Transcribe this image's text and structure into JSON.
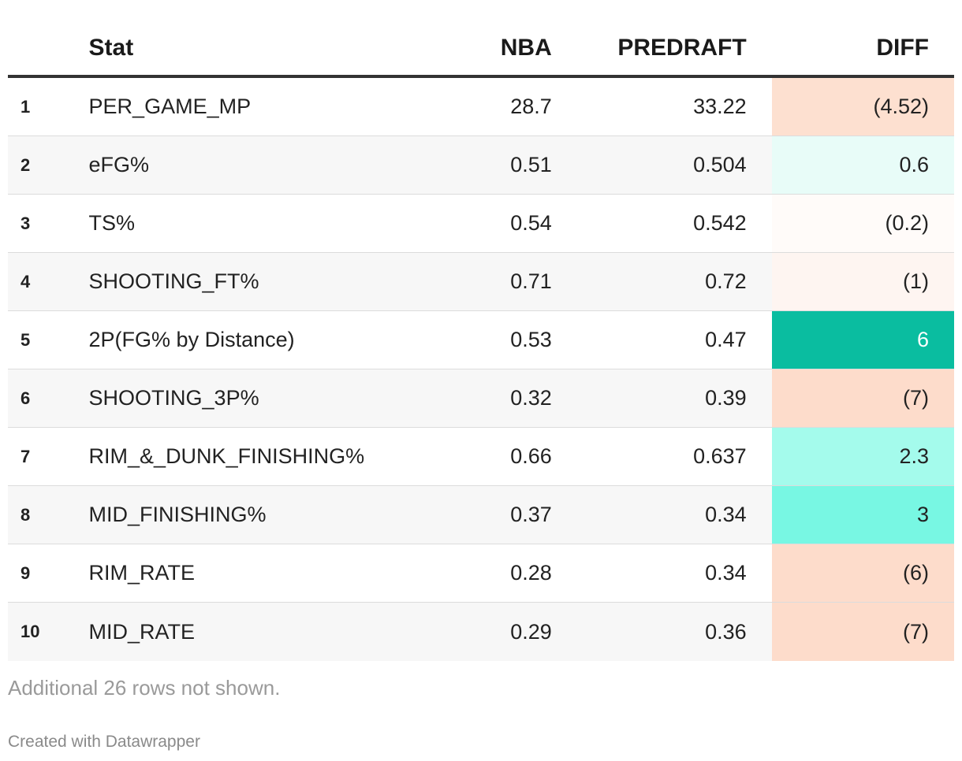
{
  "chart_data": {
    "type": "table",
    "columns": [
      "",
      "Stat",
      "NBA",
      "PREDRAFT",
      "DIFF"
    ],
    "rows": [
      {
        "idx": "1",
        "stat": "PER_GAME_MP",
        "nba": "28.7",
        "predraft": "33.22",
        "diff": "(4.52)",
        "diff_value": -4.52,
        "diff_bg": "#fde0d0",
        "diff_color": "#222222"
      },
      {
        "idx": "2",
        "stat": "eFG%",
        "nba": "0.51",
        "predraft": "0.504",
        "diff": "0.6",
        "diff_value": 0.6,
        "diff_bg": "#e8fcf8",
        "diff_color": "#222222"
      },
      {
        "idx": "3",
        "stat": "TS%",
        "nba": "0.54",
        "predraft": "0.542",
        "diff": "(0.2)",
        "diff_value": -0.2,
        "diff_bg": "#fffbf9",
        "diff_color": "#222222"
      },
      {
        "idx": "4",
        "stat": "SHOOTING_FT%",
        "nba": "0.71",
        "predraft": "0.72",
        "diff": "(1)",
        "diff_value": -1,
        "diff_bg": "#fef5f1",
        "diff_color": "#222222"
      },
      {
        "idx": "5",
        "stat": "2P(FG% by Distance)",
        "nba": "0.53",
        "predraft": "0.47",
        "diff": "6",
        "diff_value": 6,
        "diff_bg": "#0abda0",
        "diff_color": "#ffffff"
      },
      {
        "idx": "6",
        "stat": "SHOOTING_3P%",
        "nba": "0.32",
        "predraft": "0.39",
        "diff": "(7)",
        "diff_value": -7,
        "diff_bg": "#fddccb",
        "diff_color": "#222222"
      },
      {
        "idx": "7",
        "stat": "RIM_&_DUNK_FINISHING%",
        "nba": "0.66",
        "predraft": "0.637",
        "diff": "2.3",
        "diff_value": 2.3,
        "diff_bg": "#a4fbec",
        "diff_color": "#222222"
      },
      {
        "idx": "8",
        "stat": "MID_FINISHING%",
        "nba": "0.37",
        "predraft": "0.34",
        "diff": "3",
        "diff_value": 3,
        "diff_bg": "#78f7e3",
        "diff_color": "#222222"
      },
      {
        "idx": "9",
        "stat": "RIM_RATE",
        "nba": "0.28",
        "predraft": "0.34",
        "diff": "(6)",
        "diff_value": -6,
        "diff_bg": "#fddccb",
        "diff_color": "#222222"
      },
      {
        "idx": "10",
        "stat": "MID_RATE",
        "nba": "0.29",
        "predraft": "0.36",
        "diff": "(7)",
        "diff_value": -7,
        "diff_bg": "#fddccb",
        "diff_color": "#222222"
      }
    ]
  },
  "header": {
    "idx": "",
    "stat": "Stat",
    "nba": "NBA",
    "predraft": "PREDRAFT",
    "diff": "DIFF"
  },
  "footer": {
    "note": "Additional 26 rows not shown.",
    "credit": "Created with Datawrapper"
  }
}
